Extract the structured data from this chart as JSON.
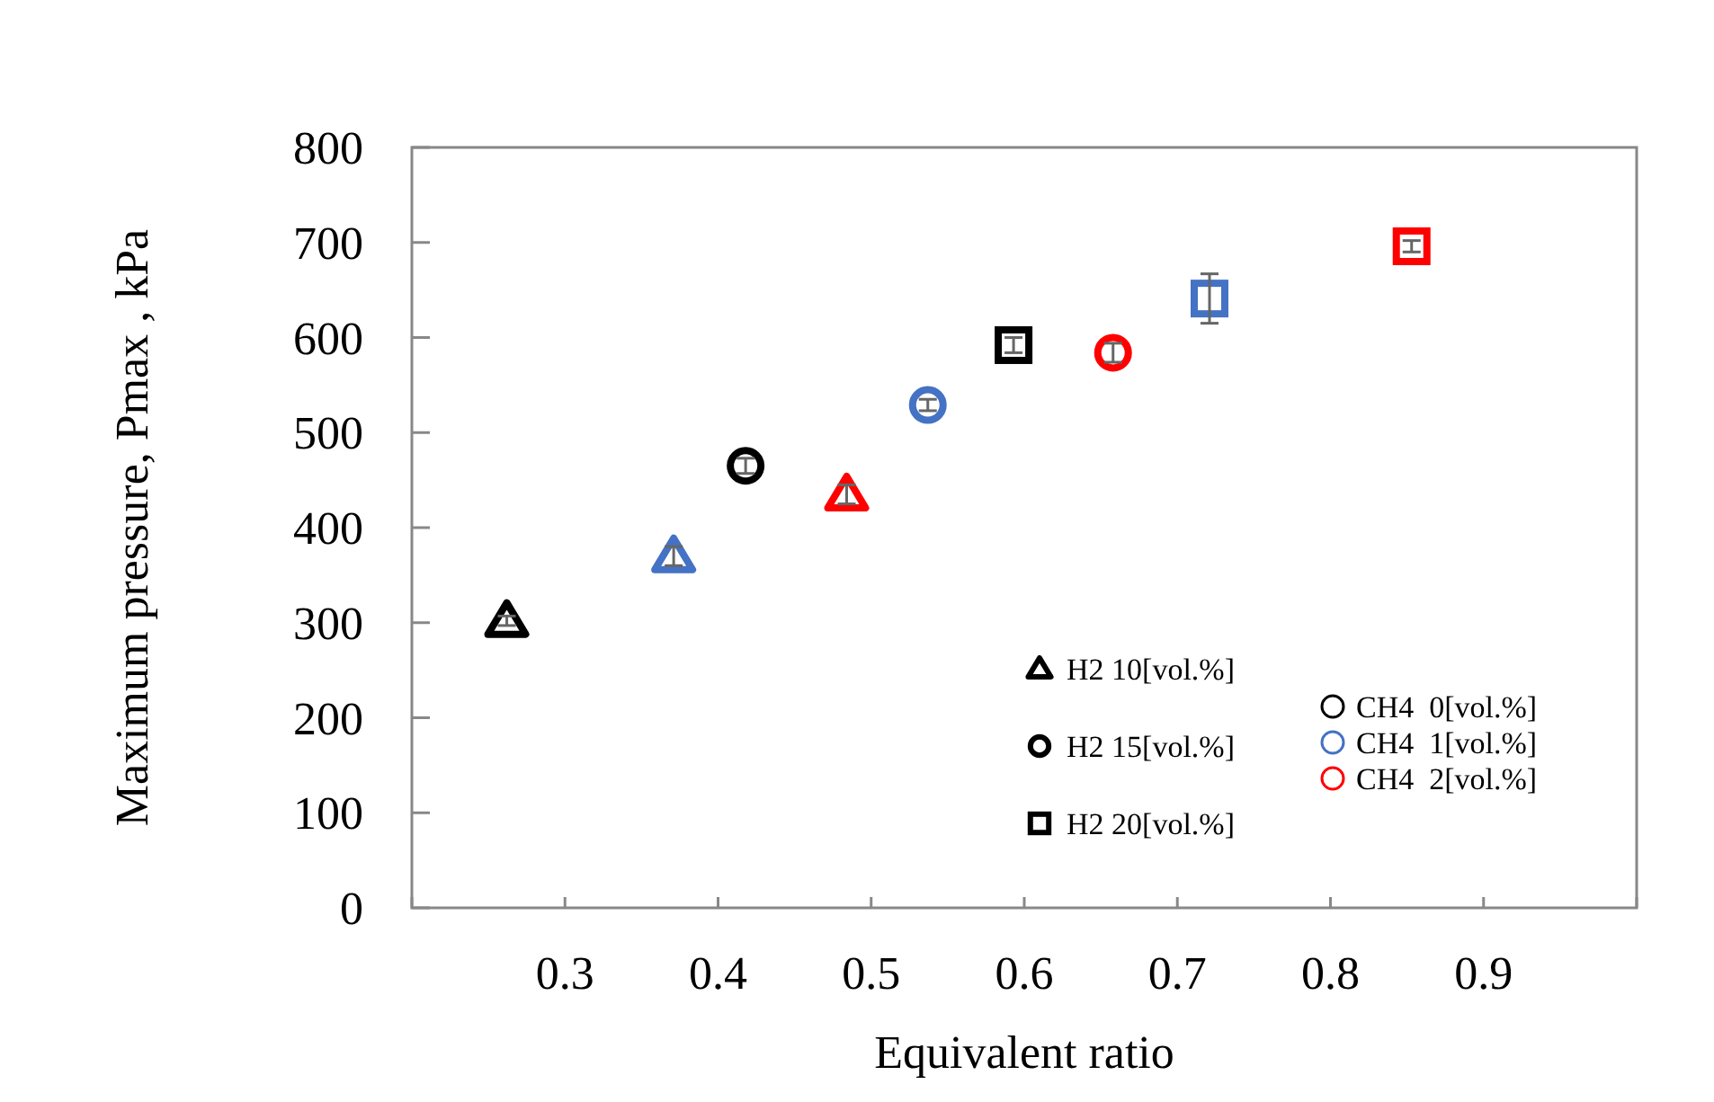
{
  "chart_data": {
    "type": "scatter",
    "xlabel": "Equivalent ratio",
    "ylabel": "Maximum pressure, Pmax , kPa",
    "xlim": [
      0.2,
      1.0
    ],
    "xticks": [
      {
        "value": 0.2,
        "label": null
      },
      0.3,
      0.4,
      0.5,
      0.6,
      0.7,
      0.8,
      0.9,
      {
        "value": 1.0,
        "label": null
      }
    ],
    "ylim": [
      0,
      800
    ],
    "yticks": [
      0,
      100,
      200,
      300,
      400,
      500,
      600,
      700,
      800
    ],
    "grid": false,
    "legend": "bottom right",
    "series": [
      {
        "name": "H2 10[vol.%]",
        "marker": "triangle",
        "color": "#000000",
        "colors": [
          "#000000",
          "#4472c4",
          "#ff0000"
        ],
        "x": [
          0.262,
          0.371,
          0.484
        ],
        "values": [
          302,
          370,
          435
        ],
        "errors": [
          5,
          10,
          10
        ]
      },
      {
        "name": "H2 15[vol.%]",
        "marker": "circle",
        "color": "#000000",
        "colors": [
          "#000000",
          "#4472c4",
          "#ff0000"
        ],
        "x": [
          0.418,
          0.537,
          0.658
        ],
        "values": [
          465,
          529,
          584
        ],
        "errors": [
          8,
          6,
          10
        ]
      },
      {
        "name": "H2 20[vol.%]",
        "marker": "square",
        "color": "#000000",
        "colors": [
          "#000000",
          "#4472c4",
          "#ff0000"
        ],
        "x": [
          0.593,
          0.721,
          0.853
        ],
        "values": [
          592,
          641,
          696
        ],
        "errors": [
          8,
          26,
          6
        ]
      }
    ],
    "annotations": [
      "CH4  0[vol.%]",
      "CH4  1[vol.%]",
      "CH4  2[vol.%]"
    ]
  }
}
